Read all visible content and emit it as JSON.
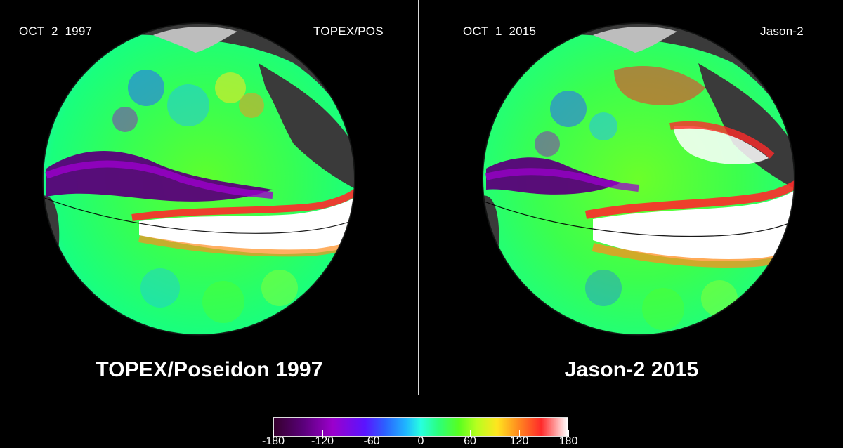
{
  "left_panel": {
    "date": "OCT  2  1997",
    "satellite": "TOPEX/POS",
    "caption": "TOPEX/Poseidon 1997"
  },
  "right_panel": {
    "date": "OCT  1  2015",
    "satellite": "Jason-2",
    "caption": "Jason-2 2015"
  },
  "colorbar": {
    "tick_labels": [
      "-180",
      "-120",
      "-60",
      "0",
      "60",
      "120",
      "180"
    ],
    "colors": [
      "#35002d",
      "#9b00cc",
      "#2b63ff",
      "#28ffe0",
      "#58ff1f",
      "#ffe51f",
      "#ff2a2a",
      "#ffffff"
    ]
  },
  "legend_colors": {
    "land": "#3a3a3a",
    "ice": "#bdbdbd",
    "ocean_high": "#ffffff",
    "ocean_low": "#5a007a"
  }
}
